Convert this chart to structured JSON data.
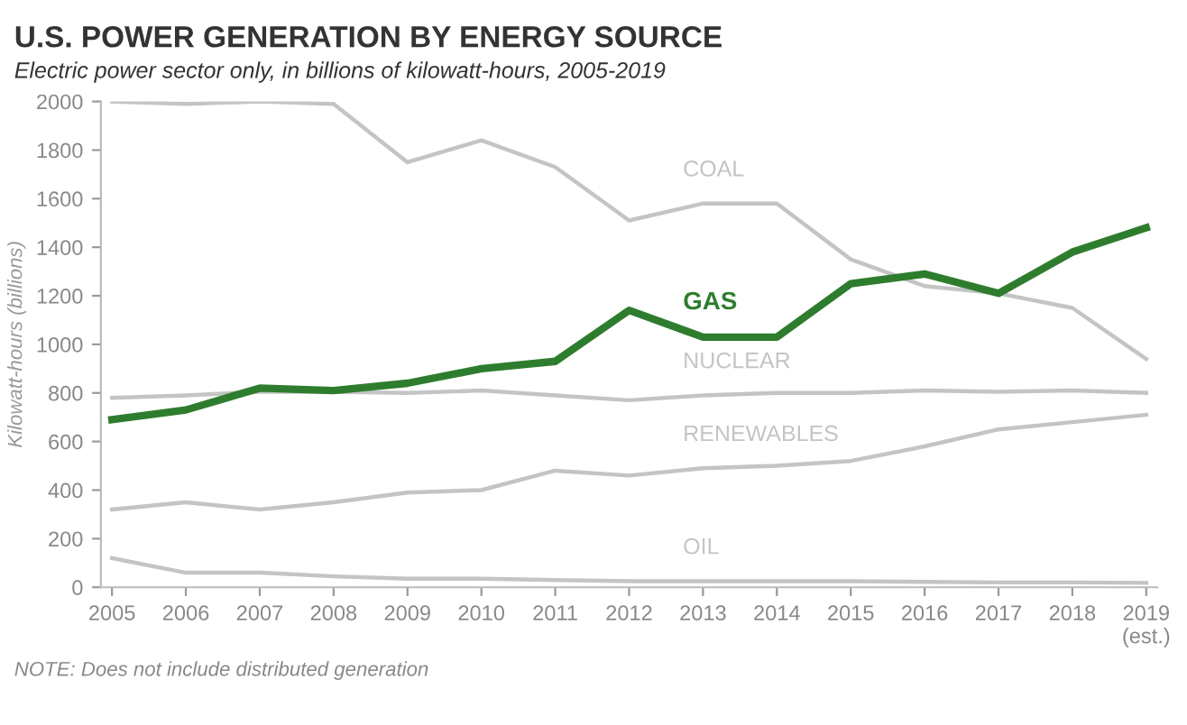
{
  "chart_data": {
    "type": "line",
    "title": "U.S. POWER GENERATION BY ENERGY SOURCE",
    "subtitle": "Electric power sector only, in billions of kilowatt-hours, 2005-2019",
    "ylabel": "Kilowatt-hours (billions)",
    "categories": [
      "2005",
      "2006",
      "2007",
      "2008",
      "2009",
      "2010",
      "2011",
      "2012",
      "2013",
      "2014",
      "2015",
      "2016",
      "2017",
      "2018",
      "2019\n(est.)"
    ],
    "series": [
      {
        "name": "COAL",
        "color": "#c4c4c4",
        "values": [
          2000,
          1990,
          2000,
          1990,
          1750,
          1840,
          1730,
          1510,
          1580,
          1580,
          1350,
          1240,
          1210,
          1150,
          940
        ]
      },
      {
        "name": "NUCLEAR",
        "color": "#c4c4c4",
        "values": [
          780,
          790,
          805,
          805,
          800,
          810,
          790,
          770,
          790,
          800,
          800,
          810,
          805,
          810,
          800
        ]
      },
      {
        "name": "RENEWABLES",
        "color": "#c4c4c4",
        "values": [
          320,
          350,
          320,
          350,
          390,
          400,
          480,
          460,
          490,
          500,
          520,
          580,
          650,
          680,
          710
        ]
      },
      {
        "name": "OIL",
        "color": "#c4c4c4",
        "values": [
          120,
          60,
          60,
          45,
          35,
          35,
          30,
          25,
          25,
          25,
          25,
          22,
          20,
          20,
          18
        ]
      },
      {
        "name": "GAS",
        "color": "#2e7d2e",
        "values": [
          690,
          730,
          820,
          810,
          840,
          900,
          930,
          1140,
          1030,
          1030,
          1250,
          1290,
          1210,
          1380,
          1480
        ]
      }
    ],
    "ylim": [
      0,
      2000
    ],
    "yticks": [
      0,
      200,
      400,
      600,
      800,
      1000,
      1200,
      1400,
      1600,
      1800,
      2000
    ],
    "grid": false,
    "legend": false,
    "marker": "none",
    "line_style": "solid",
    "annotations": [
      "NOTE: Does not include distributed generation"
    ]
  }
}
